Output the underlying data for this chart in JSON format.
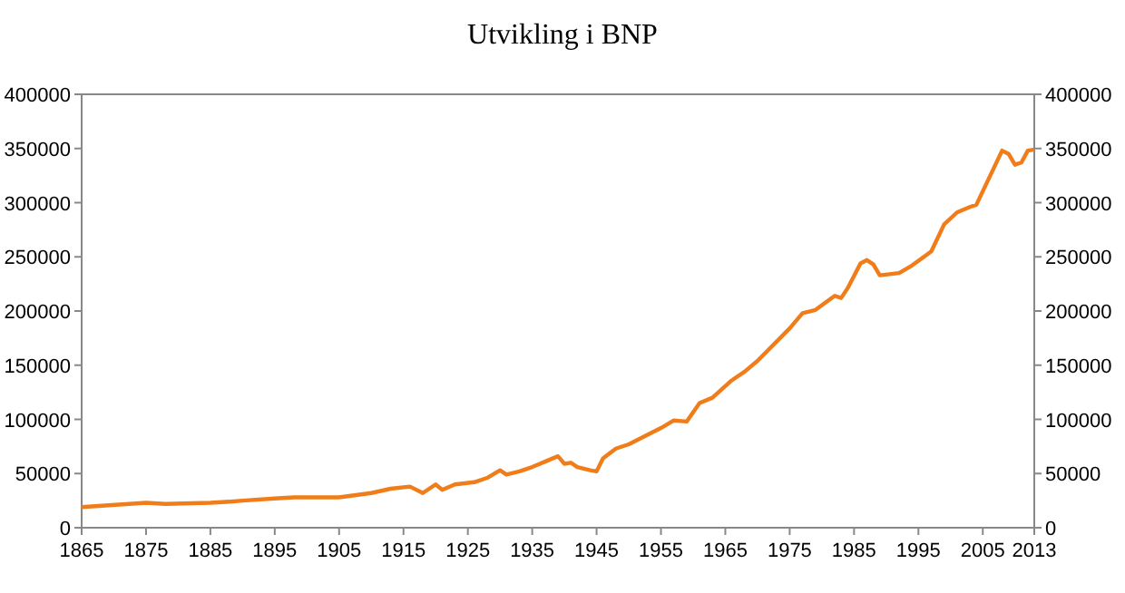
{
  "chart_data": {
    "type": "line",
    "title": "Utvikling i BNP",
    "x": [
      1865,
      1875,
      1878,
      1885,
      1888,
      1890,
      1895,
      1898,
      1905,
      1910,
      1913,
      1916,
      1918,
      1920,
      1921,
      1923,
      1926,
      1928,
      1930,
      1931,
      1933,
      1935,
      1937,
      1939,
      1940,
      1941,
      1942,
      1944,
      1945,
      1946,
      1948,
      1950,
      1955,
      1957,
      1959,
      1961,
      1963,
      1966,
      1968,
      1970,
      1975,
      1977,
      1979,
      1982,
      1983,
      1984,
      1986,
      1987,
      1988,
      1989,
      1992,
      1994,
      1997,
      1999,
      2001,
      2003,
      2004,
      2008,
      2009,
      2010,
      2011,
      2012,
      2013
    ],
    "series": [
      {
        "color": "#f07d1a",
        "values": [
          19000,
          23000,
          22000,
          23000,
          24000,
          25000,
          27000,
          28000,
          28000,
          32000,
          36000,
          38000,
          32000,
          40000,
          35000,
          40000,
          42000,
          46000,
          53000,
          49000,
          52000,
          56000,
          61000,
          66000,
          59000,
          60000,
          56000,
          53000,
          52000,
          64000,
          73000,
          77000,
          92000,
          99000,
          98000,
          115000,
          120000,
          136000,
          144000,
          154000,
          184000,
          198000,
          201000,
          214000,
          212000,
          221000,
          244000,
          247000,
          243000,
          233000,
          235000,
          242000,
          255000,
          280000,
          291000,
          296000,
          298000,
          348000,
          345000,
          335000,
          337000,
          348000,
          349000
        ]
      }
    ],
    "xlim": [
      1865,
      2013
    ],
    "xticks": [
      1865,
      1875,
      1885,
      1895,
      1905,
      1915,
      1925,
      1935,
      1945,
      1955,
      1965,
      1975,
      1985,
      1995,
      2005,
      2013
    ],
    "ylim": [
      0,
      400000
    ],
    "yticks": [
      0,
      50000,
      100000,
      150000,
      200000,
      250000,
      300000,
      350000,
      400000
    ],
    "y2lim": [
      0,
      400000
    ],
    "y2ticks": [
      0,
      50000,
      100000,
      150000,
      200000,
      250000,
      300000,
      350000,
      400000
    ],
    "grid": false,
    "marker": "none",
    "line_style": "solid"
  }
}
